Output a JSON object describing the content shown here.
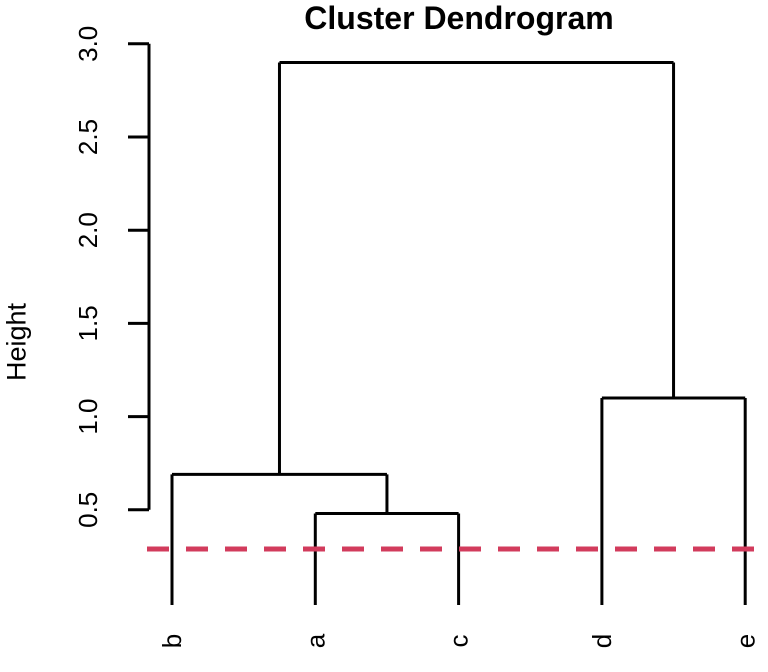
{
  "chart_data": {
    "type": "dendrogram",
    "title": "Cluster Dendrogram",
    "ylabel": "Height",
    "xlabel": "",
    "ylim": [
      0,
      3.0
    ],
    "yticks": [
      0.5,
      1.0,
      1.5,
      2.0,
      2.5,
      3.0
    ],
    "ytick_labels": [
      "0.5",
      "1.0",
      "1.5",
      "2.0",
      "2.5",
      "3.0"
    ],
    "leaf_order": [
      "b",
      "a",
      "c",
      "d",
      "e"
    ],
    "merges": [
      {
        "id": "n1",
        "members": [
          "a",
          "c"
        ],
        "height": 0.48
      },
      {
        "id": "n2",
        "members": [
          "b",
          "n1"
        ],
        "height": 0.69
      },
      {
        "id": "n3",
        "members": [
          "d",
          "e"
        ],
        "height": 1.1
      },
      {
        "id": "n4",
        "members": [
          "n2",
          "n3"
        ],
        "height": 2.9
      }
    ],
    "cutoff_line": {
      "height": 0.29,
      "style": "dashed",
      "color": "#D23B5C"
    },
    "line_color": "#000000",
    "axis_color": "#000000",
    "background": "#FFFFFF",
    "grid": false,
    "legend": false
  }
}
